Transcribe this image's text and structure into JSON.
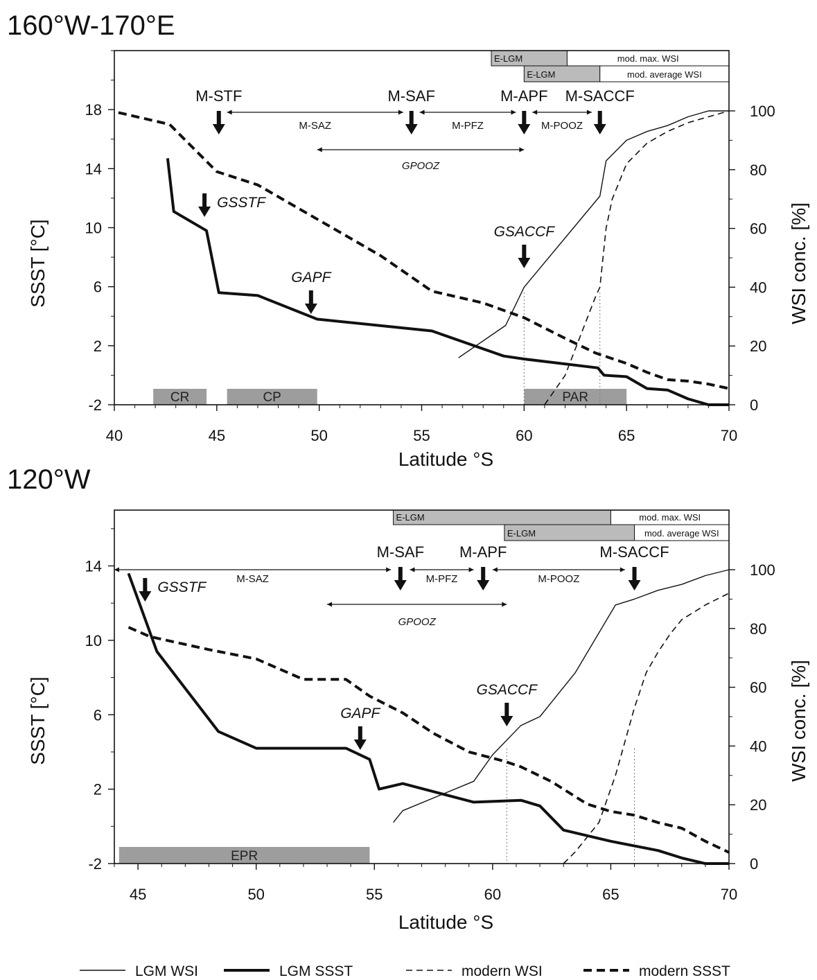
{
  "chart_data": [
    {
      "type": "line",
      "title": "160°W-170°E",
      "xlabel": "Latitude °S",
      "ylabel": "SSST [°C]",
      "y2label": "WSI conc. [%]",
      "xlim": [
        40,
        70
      ],
      "ylim": [
        -2,
        22
      ],
      "y2lim": [
        0,
        100
      ],
      "xticks": [
        40,
        45,
        50,
        55,
        60,
        65,
        70
      ],
      "yticks": [
        -2,
        2,
        6,
        10,
        14,
        18
      ],
      "y2ticks": [
        0,
        20,
        40,
        60,
        80,
        100
      ],
      "series": [
        {
          "name": "LGM WSI",
          "axis": "right",
          "style": "thin-solid",
          "x": [
            56.8,
            59.1,
            60.0,
            63.7,
            64.0,
            65.0,
            66.0,
            67.0,
            68.0,
            69.0,
            70.0
          ],
          "y": [
            16,
            27,
            40,
            71,
            83,
            90,
            93,
            95,
            98,
            100,
            100
          ]
        },
        {
          "name": "LGM SSST",
          "axis": "left",
          "style": "thick-solid",
          "x": [
            42.6,
            42.9,
            44.5,
            45.1,
            47.0,
            49.9,
            55.5,
            59.0,
            60.0,
            63.6,
            63.9,
            65.0,
            66.0,
            67.0,
            68.0,
            69.0,
            70.0
          ],
          "y": [
            14.7,
            11.1,
            9.8,
            5.6,
            5.4,
            3.8,
            3.0,
            1.3,
            1.1,
            0.5,
            0.0,
            -0.1,
            -0.9,
            -1.0,
            -1.6,
            -2.0,
            -2.0
          ]
        },
        {
          "name": "modern WSI",
          "axis": "right",
          "style": "thin-dashed",
          "x": [
            61.0,
            62.0,
            63.5,
            63.7,
            64.0,
            64.3,
            65.0,
            66.0,
            67.0,
            68.0,
            69.0,
            70.0
          ],
          "y": [
            0,
            10,
            37,
            40,
            60,
            70,
            82,
            89,
            93,
            96,
            98,
            100
          ]
        },
        {
          "name": "modern SSST",
          "axis": "left",
          "style": "thick-dashed",
          "x": [
            40.2,
            42.7,
            45.0,
            47.0,
            50.0,
            53.0,
            55.5,
            58.0,
            60.0,
            62.0,
            63.5,
            65.0,
            66.0,
            67.0,
            68.0,
            69.0,
            70.0
          ],
          "y": [
            17.8,
            17.0,
            13.8,
            12.9,
            10.5,
            8.1,
            5.7,
            4.9,
            3.9,
            2.5,
            1.5,
            0.8,
            0.2,
            -0.3,
            -0.4,
            -0.6,
            -0.9
          ]
        }
      ],
      "bands": [
        {
          "label": "E-LGM",
          "x": [
            58.4,
            62.1
          ],
          "row": 1,
          "shade": "#bbbbbb"
        },
        {
          "label": "mod. max. WSI",
          "x": [
            62.1,
            70.0
          ],
          "row": 1,
          "shade": "#ffffff"
        },
        {
          "label": "E-LGM",
          "x": [
            60.0,
            63.7
          ],
          "row": 2,
          "shade": "#bbbbbb"
        },
        {
          "label": "mod. average WSI",
          "x": [
            63.7,
            70.0
          ],
          "row": 2,
          "shade": "#ffffff"
        }
      ],
      "fronts_modern": [
        {
          "label": "M-STF",
          "x": 45.1
        },
        {
          "label": "M-SAF",
          "x": 54.5
        },
        {
          "label": "M-APF",
          "x": 60.0
        },
        {
          "label": "M-SACCF",
          "x": 63.7
        }
      ],
      "zones_modern": [
        {
          "label": "M-SAZ",
          "from": 45.5,
          "to": 54.1
        },
        {
          "label": "M-PFZ",
          "from": 54.9,
          "to": 59.6
        },
        {
          "label": "M-POOZ",
          "from": 60.4,
          "to": 63.3
        }
      ],
      "zone_glacial": {
        "label": "GPOOZ",
        "from": 49.9,
        "to": 60.0
      },
      "fronts_glacial": [
        {
          "label": "GSSTF",
          "x": 44.4
        },
        {
          "label": "GAPF",
          "x": 49.6
        },
        {
          "label": "GSACCF",
          "x": 60.0
        }
      ],
      "regions": [
        {
          "label": "CR",
          "from": 41.9,
          "to": 44.5
        },
        {
          "label": "CP",
          "from": 45.5,
          "to": 49.9
        },
        {
          "label": "PAR",
          "from": 60.0,
          "to": 65.0
        }
      ]
    },
    {
      "type": "line",
      "title": "120°W",
      "xlabel": "Latitude °S",
      "ylabel": "SSST [°C]",
      "y2label": "WSI conc. [%]",
      "xlim": [
        44,
        70
      ],
      "ylim": [
        -2,
        17
      ],
      "y2lim": [
        0,
        100
      ],
      "xticks": [
        45,
        50,
        55,
        60,
        65,
        70
      ],
      "yticks": [
        -2,
        2,
        6,
        10,
        14
      ],
      "y2ticks": [
        0,
        20,
        40,
        60,
        80,
        100
      ],
      "series": [
        {
          "name": "LGM WSI",
          "axis": "right",
          "style": "thin-solid",
          "x": [
            55.8,
            56.2,
            59.2,
            60.0,
            61.2,
            62.0,
            63.5,
            65.2,
            66.0,
            67.0,
            68.0,
            69.0,
            70.0
          ],
          "y": [
            14,
            18,
            28,
            37,
            47,
            50,
            65,
            88,
            90,
            93,
            95,
            98,
            100
          ]
        },
        {
          "name": "LGM SSST",
          "axis": "left",
          "style": "thick-solid",
          "x": [
            44.6,
            45.8,
            48.4,
            50.0,
            53.8,
            54.8,
            55.2,
            56.2,
            59.2,
            61.2,
            62.0,
            63.0,
            65.0,
            67.0,
            68.0,
            69.0,
            70.0
          ],
          "y": [
            13.6,
            9.4,
            5.1,
            4.2,
            4.2,
            3.6,
            2.0,
            2.3,
            1.3,
            1.4,
            1.1,
            -0.2,
            -0.8,
            -1.3,
            -1.7,
            -2.0,
            -2.0
          ]
        },
        {
          "name": "modern WSI",
          "axis": "right",
          "style": "thin-dashed",
          "x": [
            63.0,
            63.5,
            64.5,
            65.2,
            66.0,
            66.5,
            67.0,
            67.5,
            68.0,
            69.0,
            70.0
          ],
          "y": [
            0,
            4,
            14,
            30,
            53,
            65,
            72,
            78,
            83,
            88,
            92
          ]
        },
        {
          "name": "modern SSST",
          "axis": "left",
          "style": "thick-dashed",
          "x": [
            44.6,
            45.5,
            48.0,
            50.0,
            52.0,
            53.8,
            54.8,
            56.2,
            57.5,
            59.0,
            60.5,
            61.2,
            62.5,
            64.0,
            65.0,
            66.0,
            67.0,
            68.0,
            69.0,
            70.0
          ],
          "y": [
            10.7,
            10.2,
            9.5,
            9.0,
            7.9,
            7.9,
            7.0,
            6.1,
            5.0,
            4.0,
            3.5,
            3.2,
            2.4,
            1.2,
            0.8,
            0.6,
            0.2,
            -0.1,
            -0.8,
            -1.4
          ]
        }
      ],
      "bands": [
        {
          "label": "E-LGM",
          "x": [
            55.8,
            65.0
          ],
          "row": 1,
          "shade": "#bbbbbb"
        },
        {
          "label": "mod. max. WSI",
          "x": [
            65.0,
            70.0
          ],
          "row": 1,
          "shade": "#ffffff"
        },
        {
          "label": "E-LGM",
          "x": [
            60.5,
            66.0
          ],
          "row": 2,
          "shade": "#bbbbbb"
        },
        {
          "label": "mod. average WSI",
          "x": [
            66.0,
            70.0
          ],
          "row": 2,
          "shade": "#ffffff"
        }
      ],
      "fronts_modern": [
        {
          "label": "M-SAF",
          "x": 56.1
        },
        {
          "label": "M-APF",
          "x": 59.6
        },
        {
          "label": "M-SACCF",
          "x": 66.0
        }
      ],
      "zones_modern": [
        {
          "label": "M-SAZ",
          "from": 44.0,
          "to": 55.7
        },
        {
          "label": "M-PFZ",
          "from": 56.5,
          "to": 59.2
        },
        {
          "label": "M-POOZ",
          "from": 60.0,
          "to": 65.6
        }
      ],
      "zone_glacial": {
        "label": "GPOOZ",
        "from": 53.0,
        "to": 60.6
      },
      "fronts_glacial": [
        {
          "label": "GSSTF",
          "x": 45.3
        },
        {
          "label": "GAPF",
          "x": 54.4
        },
        {
          "label": "GSACCF",
          "x": 60.6
        }
      ],
      "regions": [
        {
          "label": "EPR",
          "from": 44.2,
          "to": 54.8
        }
      ]
    }
  ],
  "legend": [
    {
      "label": "LGM WSI",
      "style": "thin-solid"
    },
    {
      "label": "LGM SSST",
      "style": "thick-solid"
    },
    {
      "label": "modern WSI",
      "style": "thin-dashed"
    },
    {
      "label": "modern SSST",
      "style": "thick-dashed"
    }
  ],
  "colors": {
    "line": "#111111",
    "band_shade": "#bbbbbb",
    "region_shade": "#9d9d9d"
  }
}
